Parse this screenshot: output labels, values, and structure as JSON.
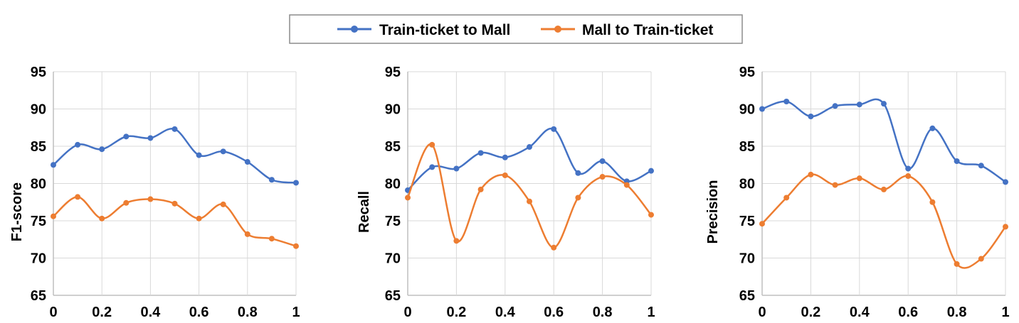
{
  "chart_data": [
    {
      "type": "line",
      "ylabel": "F1-score",
      "xlabel": "",
      "x": [
        0,
        0.1,
        0.2,
        0.3,
        0.4,
        0.5,
        0.6,
        0.7,
        0.8,
        0.9,
        1
      ],
      "x_ticks": [
        "0",
        "0.2",
        "0.4",
        "0.6",
        "0.8",
        "1"
      ],
      "y_ticks": [
        "65",
        "70",
        "75",
        "80",
        "85",
        "90",
        "95"
      ],
      "xlim": [
        0,
        1
      ],
      "ylim": [
        65,
        95
      ],
      "grid": true,
      "series": [
        {
          "name": "Train-ticket to Mall",
          "color": "#4472C4",
          "values": [
            82.5,
            85.2,
            84.6,
            86.3,
            86.1,
            87.3,
            83.8,
            84.3,
            82.9,
            80.5,
            80.1
          ]
        },
        {
          "name": "Mall to Train-ticket",
          "color": "#ED7D31",
          "values": [
            75.6,
            78.2,
            75.3,
            77.4,
            77.9,
            77.3,
            75.3,
            77.2,
            73.2,
            72.6,
            71.6
          ]
        }
      ]
    },
    {
      "type": "line",
      "ylabel": "Recall",
      "xlabel": "",
      "x": [
        0,
        0.1,
        0.2,
        0.3,
        0.4,
        0.5,
        0.6,
        0.7,
        0.8,
        0.9,
        1
      ],
      "x_ticks": [
        "0",
        "0.2",
        "0.4",
        "0.6",
        "0.8",
        "1"
      ],
      "y_ticks": [
        "65",
        "70",
        "75",
        "80",
        "85",
        "90",
        "95"
      ],
      "xlim": [
        0,
        1
      ],
      "ylim": [
        65,
        95
      ],
      "grid": true,
      "series": [
        {
          "name": "Train-ticket to Mall",
          "color": "#4472C4",
          "values": [
            79.1,
            82.2,
            82.0,
            84.1,
            83.5,
            84.9,
            87.3,
            81.4,
            83.0,
            80.3,
            81.7
          ]
        },
        {
          "name": "Mall to Train-ticket",
          "color": "#ED7D31",
          "values": [
            78.1,
            85.2,
            72.3,
            79.2,
            81.1,
            77.6,
            71.4,
            78.1,
            80.9,
            79.8,
            75.8
          ]
        }
      ]
    },
    {
      "type": "line",
      "ylabel": "Precision",
      "xlabel": "",
      "x": [
        0,
        0.1,
        0.2,
        0.3,
        0.4,
        0.5,
        0.6,
        0.7,
        0.8,
        0.9,
        1
      ],
      "x_ticks": [
        "0",
        "0.2",
        "0.4",
        "0.6",
        "0.8",
        "1"
      ],
      "y_ticks": [
        "65",
        "70",
        "75",
        "80",
        "85",
        "90",
        "95"
      ],
      "xlim": [
        0,
        1
      ],
      "ylim": [
        65,
        95
      ],
      "grid": true,
      "series": [
        {
          "name": "Train-ticket to Mall",
          "color": "#4472C4",
          "values": [
            90.0,
            91.0,
            89.0,
            90.4,
            90.6,
            90.7,
            82.0,
            87.4,
            83.0,
            82.4,
            80.2
          ]
        },
        {
          "name": "Mall to Train-ticket",
          "color": "#ED7D31",
          "values": [
            74.6,
            78.1,
            81.2,
            79.8,
            80.7,
            79.2,
            81.0,
            77.5,
            69.2,
            69.9,
            74.2
          ]
        }
      ]
    }
  ],
  "legend": {
    "placement": "top-center",
    "entries": [
      {
        "label": "Train-ticket to Mall",
        "color": "#4472C4"
      },
      {
        "label": "Mall to Train-ticket",
        "color": "#ED7D31"
      }
    ]
  }
}
